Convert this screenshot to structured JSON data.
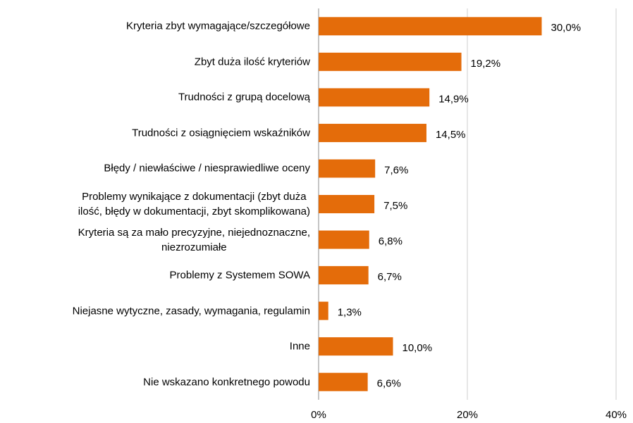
{
  "chart_data": {
    "type": "bar",
    "orientation": "horizontal",
    "categories": [
      "Kryteria zbyt wymagające/szczegółowe",
      "Zbyt duża ilość kryteriów",
      "Trudności z grupą docelową",
      "Trudności z osiągnięciem wskaźników",
      "Błędy / niewłaściwe / niesprawiedliwe oceny",
      "Problemy wynikające z dokumentacji (zbyt duża\nilość, błędy w dokumentacji, zbyt skomplikowana)",
      "Kryteria są za mało precyzyjne, niejednoznaczne,\nniezrozumiałe",
      "Problemy z Systemem SOWA",
      "Niejasne wytyczne, zasady, wymagania, regulamin",
      "Inne",
      "Nie wskazano konkretnego powodu"
    ],
    "values": [
      30.0,
      19.2,
      14.9,
      14.5,
      7.6,
      7.5,
      6.8,
      6.7,
      1.3,
      10.0,
      6.6
    ],
    "value_labels": [
      "30,0%",
      "19,2%",
      "14,9%",
      "14,5%",
      "7,6%",
      "7,5%",
      "6,8%",
      "6,7%",
      "1,3%",
      "10,0%",
      "6,6%"
    ],
    "color": "#e46c0a",
    "xlim": [
      0,
      40
    ],
    "xticks": [
      {
        "value": 0,
        "label": "0%"
      },
      {
        "value": 20,
        "label": "20%"
      },
      {
        "value": 40,
        "label": "40%"
      }
    ],
    "grid": true
  }
}
